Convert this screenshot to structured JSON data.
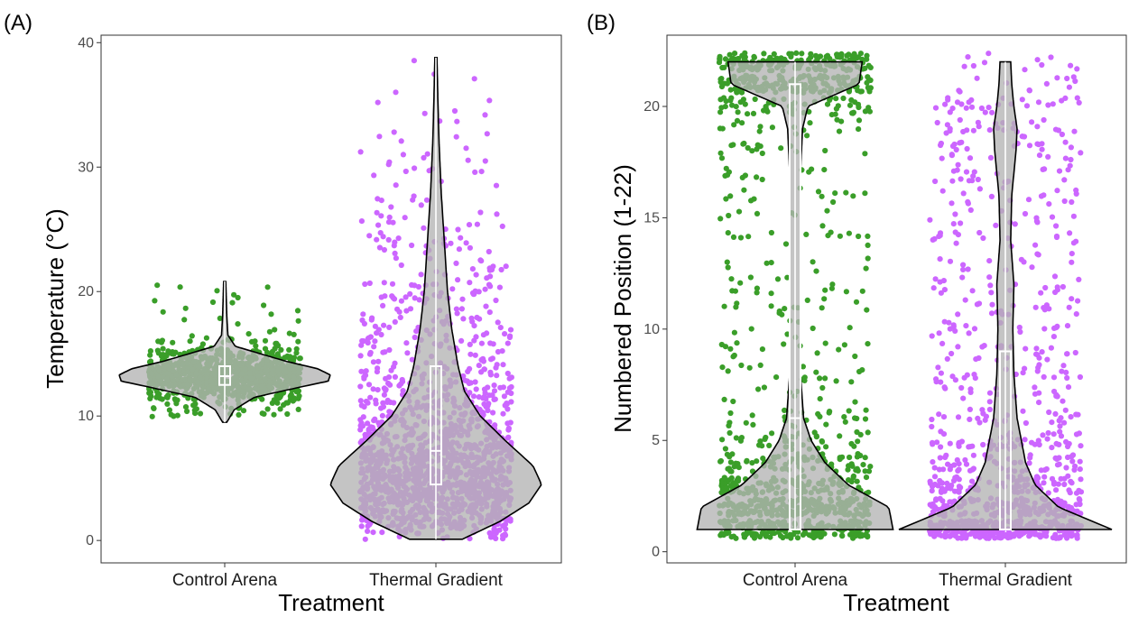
{
  "chart_data": [
    {
      "panel_label": "(A)",
      "type": "violin",
      "xlabel": "Treatment",
      "ylabel": "Temperature (°C)",
      "categories": [
        "Control Arena",
        "Thermal Gradient"
      ],
      "ylim": [
        -1.8,
        40.6
      ],
      "yticks": [
        0,
        10,
        20,
        30,
        40
      ],
      "grid": false,
      "point_colors": [
        "#3a9e29",
        "#cc66ff"
      ],
      "violin_fill": "#b3b3b3",
      "groups": [
        {
          "name": "Control Arena",
          "min": 9.5,
          "q1": 12.5,
          "median": 13.2,
          "q3": 14.0,
          "max": 20.8,
          "point_range": [
            9.7,
            20.8
          ],
          "n_points": 900,
          "density": [
            [
              9.5,
              0.02
            ],
            [
              10.5,
              0.09
            ],
            [
              11.5,
              0.28
            ],
            [
              12.3,
              0.7
            ],
            [
              12.8,
              0.98
            ],
            [
              13.3,
              1.0
            ],
            [
              13.8,
              0.88
            ],
            [
              14.4,
              0.58
            ],
            [
              15.0,
              0.34
            ],
            [
              15.6,
              0.1
            ],
            [
              16.5,
              0.03
            ],
            [
              18.0,
              0.02
            ],
            [
              20.8,
              0.01
            ]
          ]
        },
        {
          "name": "Thermal Gradient",
          "min": 0.1,
          "q1": 4.5,
          "median": 7.2,
          "q3": 14.0,
          "max": 38.8,
          "point_range": [
            0.1,
            38.8
          ],
          "n_points": 1500,
          "density": [
            [
              0.1,
              0.25
            ],
            [
              1.5,
              0.6
            ],
            [
              3.0,
              0.88
            ],
            [
              4.5,
              1.0
            ],
            [
              6.0,
              0.92
            ],
            [
              8.0,
              0.66
            ],
            [
              10.0,
              0.42
            ],
            [
              12.0,
              0.27
            ],
            [
              14.0,
              0.21
            ],
            [
              17.0,
              0.15
            ],
            [
              20.0,
              0.11
            ],
            [
              24.0,
              0.08
            ],
            [
              28.0,
              0.05
            ],
            [
              32.0,
              0.03
            ],
            [
              35.0,
              0.02
            ],
            [
              38.8,
              0.01
            ]
          ]
        }
      ]
    },
    {
      "panel_label": "(B)",
      "type": "violin",
      "xlabel": "Treatment",
      "ylabel": "Numbered Position (1-22)",
      "categories": [
        "Control Arena",
        "Thermal Gradient"
      ],
      "ylim": [
        -0.5,
        23.2
      ],
      "yticks": [
        0,
        5,
        10,
        15,
        20
      ],
      "grid": false,
      "point_colors": [
        "#3a9e29",
        "#cc66ff"
      ],
      "violin_fill": "#b3b3b3",
      "groups": [
        {
          "name": "Control Arena",
          "min": 1,
          "q1": 1,
          "median": 6,
          "q3": 21,
          "max": 22,
          "point_range": [
            0.6,
            22.4
          ],
          "n_points": 1200,
          "density": [
            [
              1,
              0.92
            ],
            [
              2,
              0.88
            ],
            [
              3,
              0.5
            ],
            [
              4,
              0.28
            ],
            [
              5,
              0.15
            ],
            [
              6,
              0.08
            ],
            [
              8,
              0.05
            ],
            [
              11,
              0.05
            ],
            [
              14,
              0.05
            ],
            [
              17,
              0.05
            ],
            [
              19,
              0.07
            ],
            [
              20,
              0.12
            ],
            [
              21,
              0.6
            ],
            [
              22,
              0.63
            ]
          ]
        },
        {
          "name": "Thermal Gradient",
          "min": 1,
          "q1": 1,
          "median": 1,
          "q3": 9,
          "max": 22,
          "point_range": [
            0.6,
            22.4
          ],
          "n_points": 1000,
          "density": [
            [
              1,
              1.0
            ],
            [
              2,
              0.5
            ],
            [
              3,
              0.28
            ],
            [
              4,
              0.19
            ],
            [
              5,
              0.15
            ],
            [
              6,
              0.11
            ],
            [
              8,
              0.08
            ],
            [
              10,
              0.07
            ],
            [
              12,
              0.08
            ],
            [
              14,
              0.05
            ],
            [
              16,
              0.06
            ],
            [
              18,
              0.1
            ],
            [
              19,
              0.11
            ],
            [
              20,
              0.08
            ],
            [
              21,
              0.06
            ],
            [
              22,
              0.05
            ]
          ]
        }
      ]
    }
  ]
}
